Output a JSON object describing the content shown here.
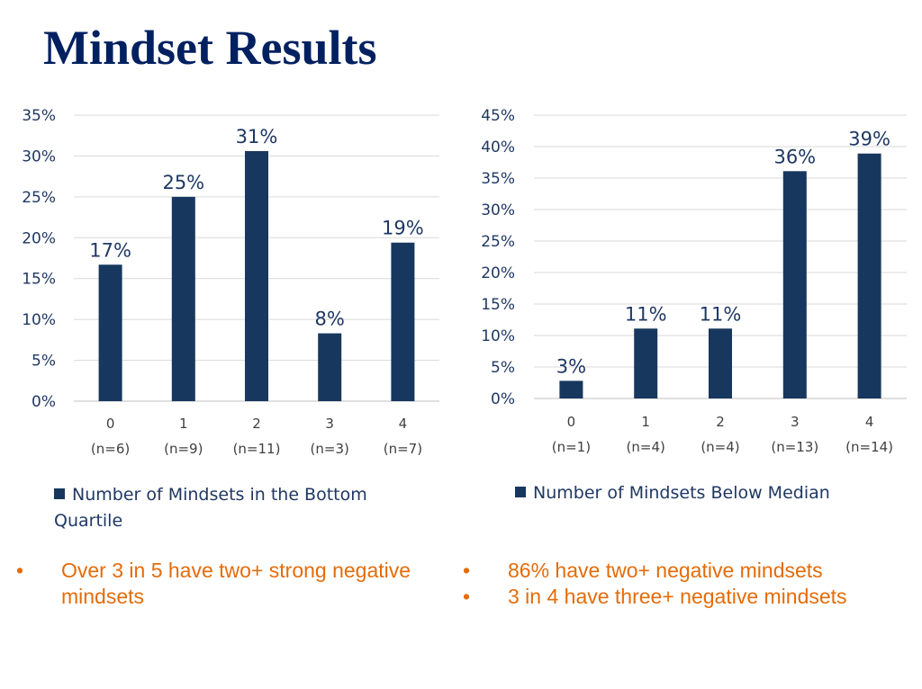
{
  "title": "Mindset Results",
  "colors": {
    "bar": "#17375e",
    "title": "#002060",
    "bullet": "#e46c0a",
    "grid": "#d9d9d9"
  },
  "chart_data": [
    {
      "type": "bar",
      "categories": [
        "0",
        "1",
        "2",
        "3",
        "4"
      ],
      "category_sublabels": [
        "(n=6)",
        "(n=9)",
        "(n=11)",
        "(n=3)",
        "(n=7)"
      ],
      "values": [
        16.7,
        25.0,
        30.6,
        8.3,
        19.4
      ],
      "data_labels": [
        "17%",
        "25%",
        "31%",
        "8%",
        "19%"
      ],
      "yticks": [
        "0%",
        "5%",
        "10%",
        "15%",
        "20%",
        "25%",
        "30%",
        "35%"
      ],
      "ylim": [
        0,
        35
      ],
      "grid": true,
      "legend": "Number of Mindsets in the Bottom Quartile",
      "legend_placement": "bottom"
    },
    {
      "type": "bar",
      "categories": [
        "0",
        "1",
        "2",
        "3",
        "4"
      ],
      "category_sublabels": [
        "(n=1)",
        "(n=4)",
        "(n=4)",
        "(n=13)",
        "(n=14)"
      ],
      "values": [
        2.8,
        11.1,
        11.1,
        36.1,
        38.9
      ],
      "data_labels": [
        "3%",
        "11%",
        "11%",
        "36%",
        "39%"
      ],
      "yticks": [
        "0%",
        "5%",
        "10%",
        "15%",
        "20%",
        "25%",
        "30%",
        "35%",
        "40%",
        "45%"
      ],
      "ylim": [
        0,
        45
      ],
      "grid": true,
      "legend": "Number of Mindsets Below Median",
      "legend_placement": "bottom"
    }
  ],
  "bullets_left": [
    "Over 3 in 5 have two+ strong negative mindsets"
  ],
  "bullets_right": [
    "86% have two+ negative mindsets",
    "3 in 4 have three+ negative mindsets"
  ],
  "bullet_char": "•"
}
